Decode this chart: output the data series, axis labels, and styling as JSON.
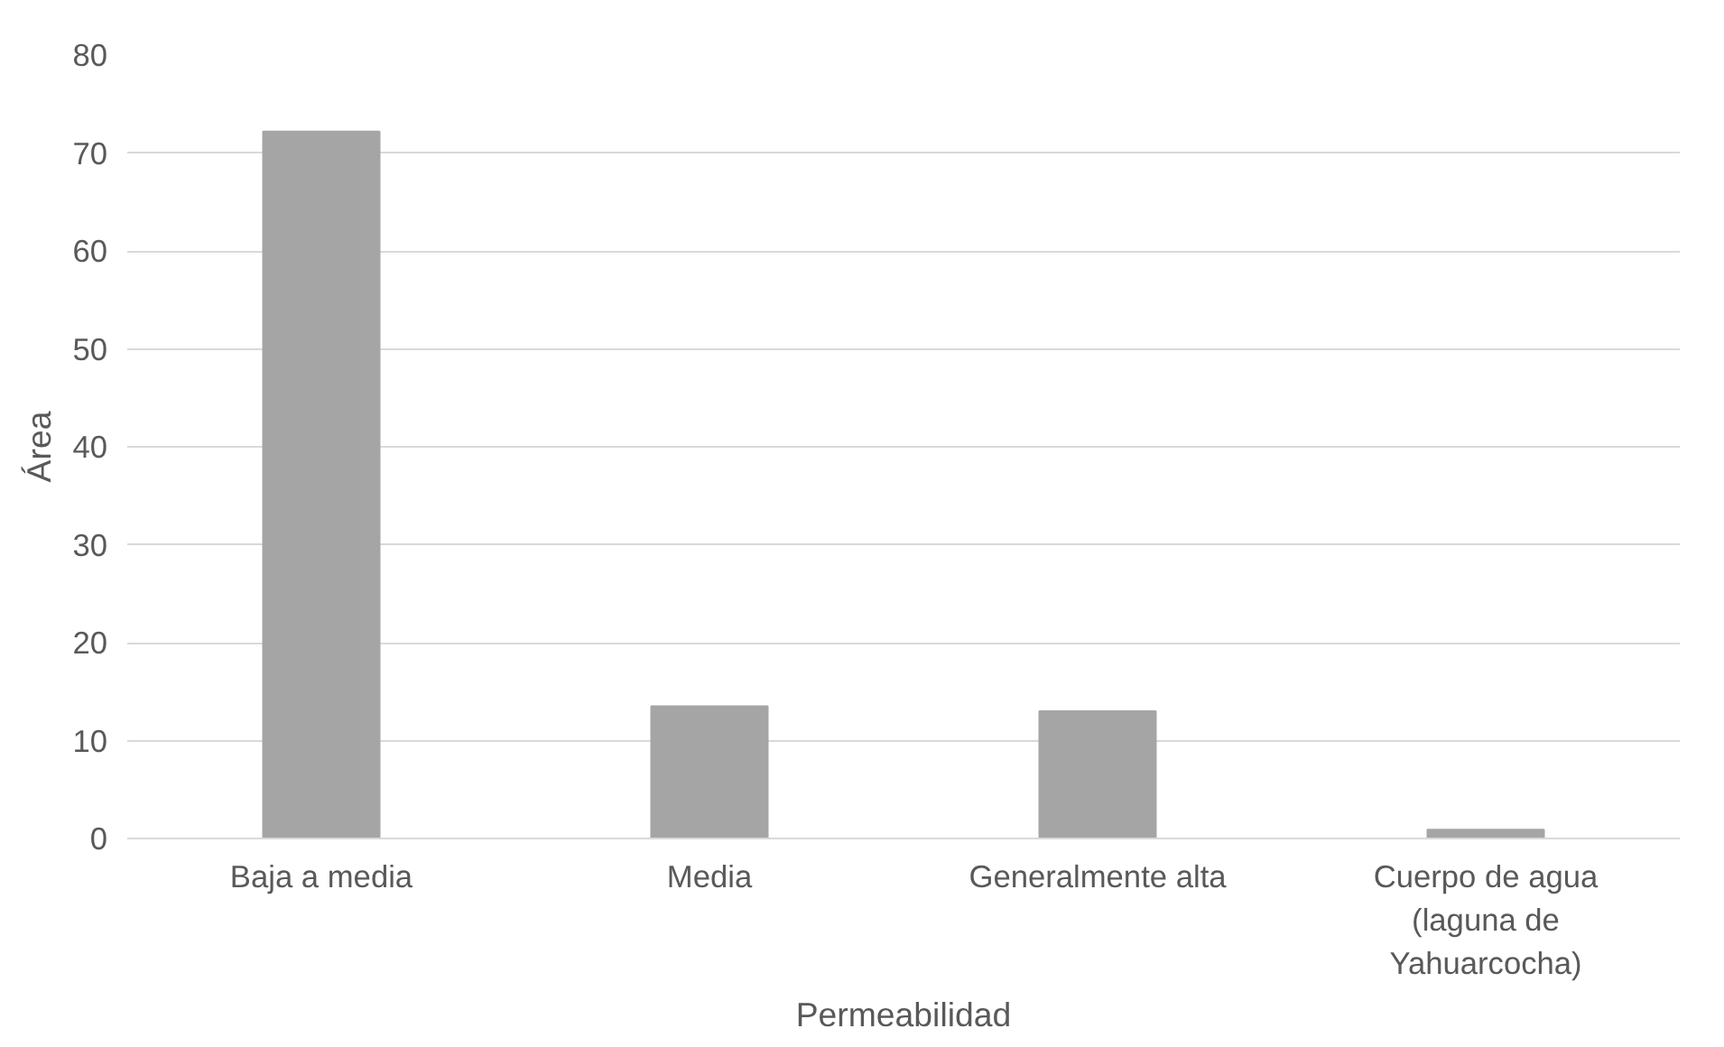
{
  "chart_data": {
    "type": "bar",
    "xlabel": "Permeabilidad",
    "ylabel": "Área",
    "categories": [
      "Baja a media",
      "Media",
      "Generalmente alta",
      "Cuerpo de agua\n(laguna de\nYahuarcocha)"
    ],
    "values": [
      72.2,
      13.5,
      13.0,
      0.9
    ],
    "color": "#a5a5a5",
    "ylim": [
      0,
      80
    ],
    "yticks": [
      0,
      10,
      20,
      30,
      40,
      50,
      60,
      70,
      80
    ],
    "grid": "y"
  }
}
